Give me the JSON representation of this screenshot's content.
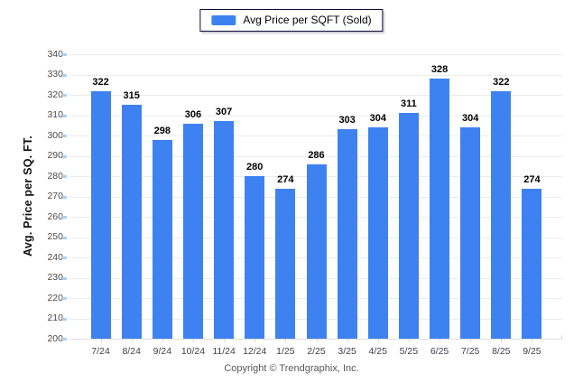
{
  "legend": {
    "label": "Avg Price per SQFT (Sold)"
  },
  "footer": {
    "copyright": "Copyright © Trendgraphix, Inc."
  },
  "colors": {
    "bar": "#3e82f1",
    "gridline": "#ececec",
    "baseline": "#e0e0e0",
    "x_tick": "#d9d9d9",
    "y_tick_mark": "#a5d3f7",
    "value_label": "#000000",
    "x_tick_label": "#3e3e50",
    "y_tick_label": "#4a4a4b",
    "legend_border": "#0d0d35"
  },
  "chart_data": {
    "type": "bar",
    "title": "",
    "series_name": "Avg Price per SQFT (Sold)",
    "categories": [
      "7/24",
      "8/24",
      "9/24",
      "10/24",
      "11/24",
      "12/24",
      "1/25",
      "2/25",
      "3/25",
      "4/25",
      "5/25",
      "6/25",
      "7/25",
      "8/25",
      "9/25"
    ],
    "values": [
      322,
      315,
      298,
      306,
      307,
      280,
      274,
      286,
      303,
      304,
      311,
      328,
      304,
      322,
      274
    ],
    "ylabel": "Avg. Price per SQ. FT.",
    "xlabel": "",
    "ylim": [
      200,
      340
    ],
    "yticks": [
      200,
      210,
      220,
      230,
      240,
      250,
      260,
      270,
      280,
      290,
      300,
      310,
      320,
      330,
      340
    ],
    "grid": "horizontal",
    "legend_position": "top-center",
    "value_labels": true
  }
}
